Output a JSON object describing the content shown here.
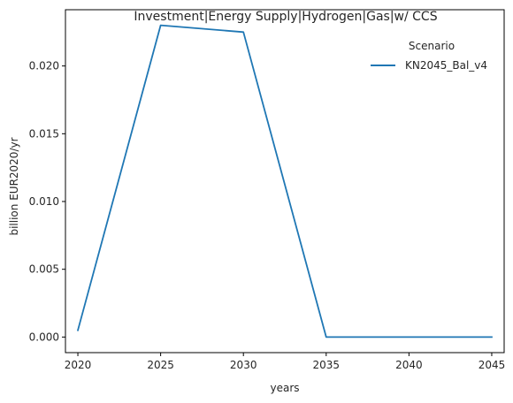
{
  "chart_data": {
    "type": "line",
    "title": "Investment|Energy Supply|Hydrogen|Gas|w/ CCS",
    "xlabel": "years",
    "ylabel": "billion EUR2020/yr",
    "x": [
      2020,
      2025,
      2030,
      2035,
      2040,
      2045
    ],
    "xlim": [
      2019.25,
      2045.75
    ],
    "ylim": [
      -0.00115,
      0.02415
    ],
    "xticks": [
      2020,
      2025,
      2030,
      2035,
      2040,
      2045
    ],
    "yticks": [
      0.0,
      0.005,
      0.01,
      0.015,
      0.02
    ],
    "ytick_labels": [
      "0.000",
      "0.005",
      "0.010",
      "0.015",
      "0.020"
    ],
    "grid": false,
    "legend": {
      "title": "Scenario",
      "placement": "top-right"
    },
    "series": [
      {
        "name": "KN2045_Bal_v4",
        "color": "#1f77b4",
        "values": [
          0.0005,
          0.023,
          0.0225,
          0.0,
          0.0,
          0.0
        ]
      }
    ]
  }
}
